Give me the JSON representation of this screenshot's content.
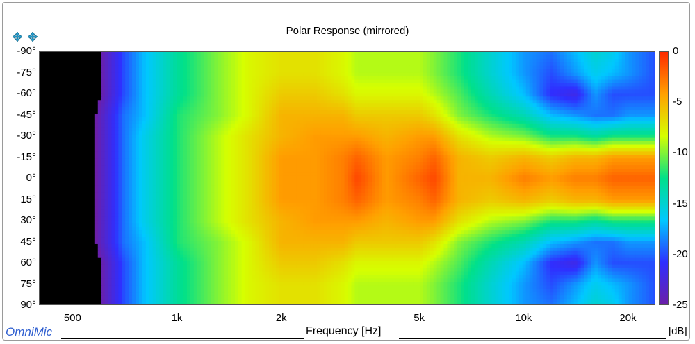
{
  "title": "Polar Response (mirrored)",
  "watermark": "OmniMic",
  "icons": [
    "zoom-in-icon",
    "zoom-out-icon"
  ],
  "chart_data": {
    "type": "heatmap",
    "title": "Polar Response (mirrored)",
    "xlabel": "Frequency [Hz]",
    "ylabel": "",
    "colorbar_label": "[dB]",
    "x_scale": "log",
    "xlim": [
      400,
      24000
    ],
    "ylim": [
      -90,
      90
    ],
    "x_ticks": [
      {
        "value": 500,
        "label": "500"
      },
      {
        "value": 1000,
        "label": "1k"
      },
      {
        "value": 2000,
        "label": "2k"
      },
      {
        "value": 5000,
        "label": "5k"
      },
      {
        "value": 10000,
        "label": "10k"
      },
      {
        "value": 20000,
        "label": "20k"
      }
    ],
    "y_ticks": [
      "-90°",
      "-75°",
      "-60°",
      "-45°",
      "-30°",
      "-15°",
      "0°",
      "15°",
      "30°",
      "45°",
      "60°",
      "75°",
      "90°"
    ],
    "colorbar_ticks": [
      "0",
      "-5",
      "-10",
      "-15",
      "-20",
      "-25"
    ],
    "color_range": [
      -25,
      0
    ],
    "angles": [
      0,
      15,
      30,
      45,
      60,
      75,
      90
    ],
    "frequencies": [
      400,
      500,
      600,
      700,
      800,
      1000,
      1300,
      1600,
      2000,
      2500,
      3000,
      3300,
      4000,
      5000,
      5500,
      6500,
      8000,
      10000,
      12000,
      14000,
      16000,
      18000,
      20000,
      24000
    ],
    "values": [
      [
        -30,
        -30,
        -24,
        -19,
        -16,
        -12,
        -9,
        -7,
        -4,
        -4,
        -3,
        -1,
        -4,
        -2,
        -1,
        -5,
        -5,
        -3,
        -4,
        -3,
        -3,
        -2,
        -2,
        -2
      ],
      [
        -30,
        -30,
        -24,
        -19,
        -16,
        -12,
        -9,
        -7,
        -4,
        -4,
        -3,
        -2,
        -4,
        -3,
        -2,
        -5,
        -6,
        -5,
        -6,
        -5,
        -5,
        -4,
        -4,
        -4
      ],
      [
        -30,
        -30,
        -24,
        -19,
        -16,
        -12,
        -9,
        -7,
        -5,
        -4,
        -4,
        -4,
        -5,
        -4,
        -4,
        -7,
        -9,
        -10,
        -12,
        -12,
        -13,
        -12,
        -12,
        -12
      ],
      [
        -30,
        -30,
        -24,
        -19,
        -17,
        -12,
        -10,
        -8,
        -5,
        -5,
        -5,
        -6,
        -6,
        -6,
        -7,
        -10,
        -12,
        -14,
        -17,
        -18,
        -19,
        -19,
        -18,
        -18
      ],
      [
        -30,
        -30,
        -25,
        -20,
        -17,
        -13,
        -10,
        -8,
        -6,
        -6,
        -7,
        -8,
        -8,
        -8,
        -9,
        -11,
        -14,
        -17,
        -21,
        -22,
        -18,
        -20,
        -20,
        -20
      ],
      [
        -30,
        -30,
        -25,
        -20,
        -17,
        -13,
        -10,
        -8,
        -7,
        -7,
        -8,
        -9,
        -9,
        -9,
        -10,
        -12,
        -15,
        -18,
        -20,
        -18,
        -16,
        -17,
        -18,
        -20
      ],
      [
        -30,
        -30,
        -25,
        -20,
        -17,
        -13,
        -10,
        -8,
        -7,
        -7,
        -8,
        -9,
        -9,
        -9,
        -10,
        -12,
        -15,
        -18,
        -19,
        -17,
        -15,
        -16,
        -18,
        -20
      ]
    ]
  },
  "colors": {
    "low": "#000000",
    "scale": [
      "#6b1fa8",
      "#2f2fff",
      "#00c8ff",
      "#00e08a",
      "#d6ff00",
      "#ffa000",
      "#ff2a00"
    ]
  }
}
